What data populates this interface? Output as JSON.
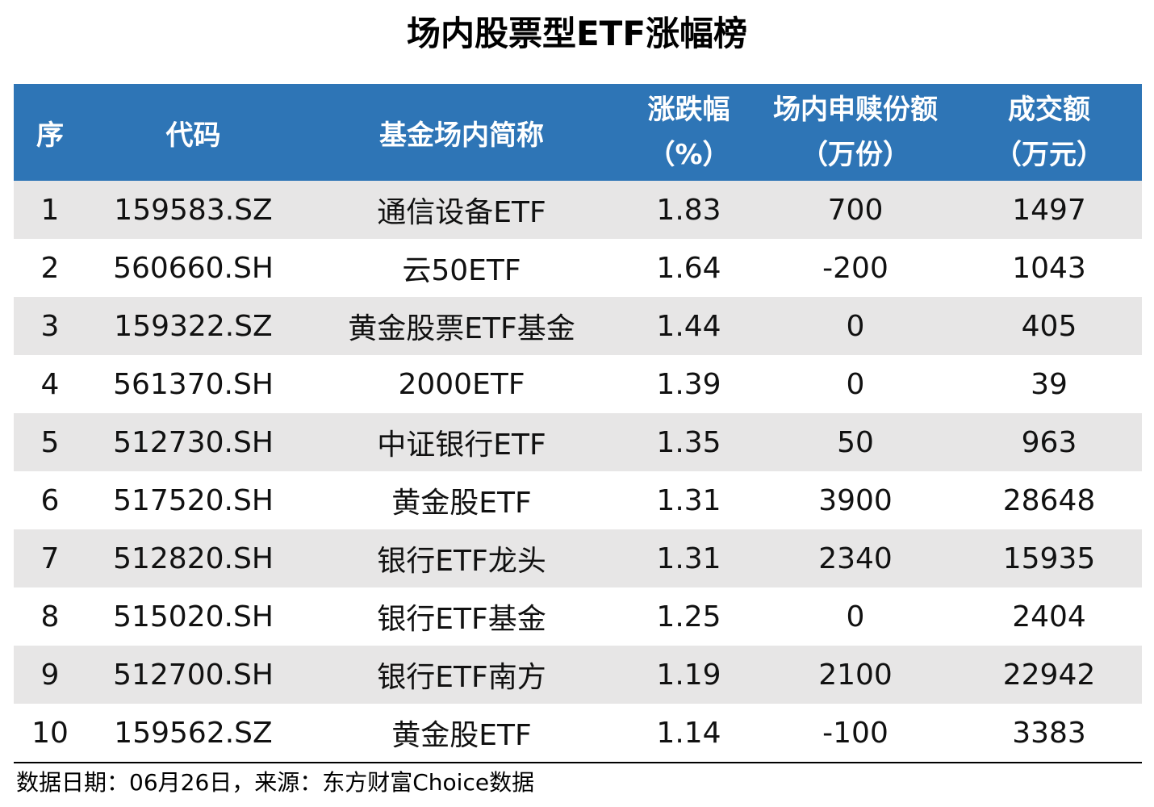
{
  "title": "场内股票型ETF涨幅榜",
  "headers": {
    "seq": "序",
    "code": "代码",
    "name": "基金场内简称",
    "change_l1": "涨跌幅",
    "change_l2": "（%）",
    "netsub_l1": "场内申赎份额",
    "netsub_l2": "（万份）",
    "turnover_l1": "成交额",
    "turnover_l2": "（万元）"
  },
  "rows": [
    {
      "seq": "1",
      "code": "159583.SZ",
      "name": "通信设备ETF",
      "change": "1.83",
      "netsub": "700",
      "turnover": "1497"
    },
    {
      "seq": "2",
      "code": "560660.SH",
      "name": "云50ETF",
      "change": "1.64",
      "netsub": "-200",
      "turnover": "1043"
    },
    {
      "seq": "3",
      "code": "159322.SZ",
      "name": "黄金股票ETF基金",
      "change": "1.44",
      "netsub": "0",
      "turnover": "405"
    },
    {
      "seq": "4",
      "code": "561370.SH",
      "name": "2000ETF",
      "change": "1.39",
      "netsub": "0",
      "turnover": "39"
    },
    {
      "seq": "5",
      "code": "512730.SH",
      "name": "中证银行ETF",
      "change": "1.35",
      "netsub": "50",
      "turnover": "963"
    },
    {
      "seq": "6",
      "code": "517520.SH",
      "name": "黄金股ETF",
      "change": "1.31",
      "netsub": "3900",
      "turnover": "28648"
    },
    {
      "seq": "7",
      "code": "512820.SH",
      "name": "银行ETF龙头",
      "change": "1.31",
      "netsub": "2340",
      "turnover": "15935"
    },
    {
      "seq": "8",
      "code": "515020.SH",
      "name": "银行ETF基金",
      "change": "1.25",
      "netsub": "0",
      "turnover": "2404"
    },
    {
      "seq": "9",
      "code": "512700.SH",
      "name": "银行ETF南方",
      "change": "1.19",
      "netsub": "2100",
      "turnover": "22942"
    },
    {
      "seq": "10",
      "code": "159562.SZ",
      "name": "黄金股ETF",
      "change": "1.14",
      "netsub": "-100",
      "turnover": "3383"
    }
  ],
  "footer": "数据日期：06月26日，来源：东方财富Choice数据",
  "colors": {
    "header_bg": "#2e75b6",
    "header_text": "#ffffff",
    "alt_row_bg": "#e7e6e6"
  }
}
